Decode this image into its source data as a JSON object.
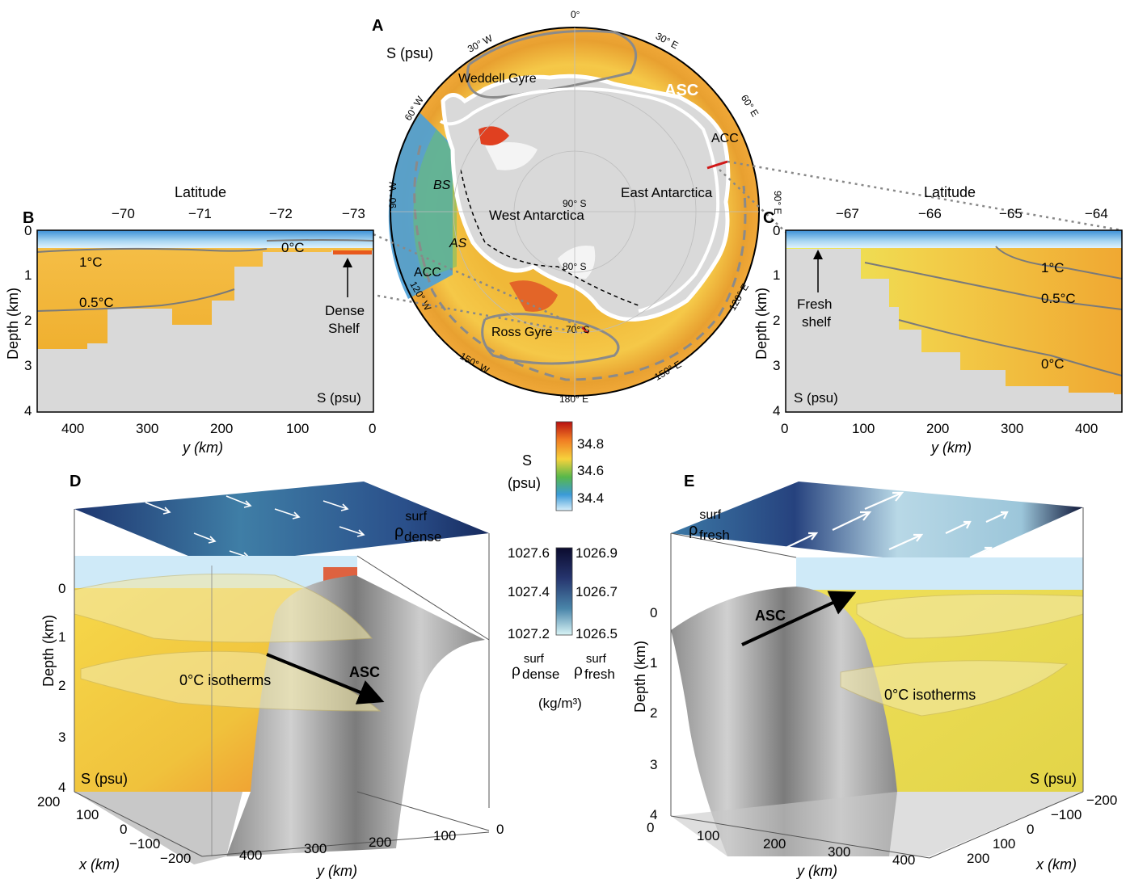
{
  "panel_labels": [
    "A",
    "B",
    "C",
    "D",
    "E"
  ],
  "panel_a": {
    "unit_label": "S (psu)",
    "longitude_labels": [
      "0°",
      "30° W",
      "30° E",
      "60° W",
      "60° E",
      "90° W",
      "90° E",
      "120° W",
      "120° E",
      "150° W",
      "150° E",
      "180° E"
    ],
    "latitude_labels": [
      "90° S",
      "80° S",
      "70° S"
    ],
    "region_labels": [
      "Weddell Gyre",
      "ASC",
      "ACC",
      "BS",
      "AS",
      "West Antarctica",
      "East Antarctica",
      "ACC",
      "Ross Gyre"
    ]
  },
  "panel_b": {
    "top_axis_title": "Latitude",
    "top_ticks": [
      "−70",
      "−71",
      "−72",
      "−73"
    ],
    "y_axis_title": "Depth (km)",
    "y_ticks": [
      "0",
      "1",
      "2",
      "3",
      "4"
    ],
    "x_axis_title": "y (km)",
    "x_ticks": [
      "400",
      "300",
      "200",
      "100",
      "0"
    ],
    "contour_labels": [
      "1°C",
      "0.5°C",
      "0°C"
    ],
    "annotation": [
      "Dense",
      "Shelf"
    ],
    "unit_label": "S (psu)"
  },
  "panel_c": {
    "top_axis_title": "Latitude",
    "top_ticks": [
      "−67",
      "−66",
      "−65",
      "−64"
    ],
    "y_axis_title": "Depth (km)",
    "y_ticks": [
      "0",
      "1",
      "2",
      "3",
      "4"
    ],
    "x_axis_title": "y (km)",
    "x_ticks": [
      "0",
      "100",
      "200",
      "300",
      "400"
    ],
    "contour_labels": [
      "1°C",
      "0.5°C",
      "0°C"
    ],
    "annotation": [
      "Fresh",
      "shelf"
    ],
    "unit_label": "S (psu)"
  },
  "salinity_colorbar": {
    "title": [
      "S",
      "(psu)"
    ],
    "ticks": [
      "34.8",
      "34.6",
      "34.4"
    ],
    "colors": [
      "#c01818",
      "#f07a22",
      "#f6d23c",
      "#58b84a",
      "#3a9ad8",
      "#cfe8f8"
    ]
  },
  "density_colorbar": {
    "left_ticks": [
      "1027.6",
      "1027.4",
      "1027.2"
    ],
    "right_ticks": [
      "1026.9",
      "1026.7",
      "1026.5"
    ],
    "left_label": {
      "main": "ρ",
      "sup": "surf",
      "sub": "dense"
    },
    "right_label": {
      "main": "ρ",
      "sup": "surf",
      "sub": "fresh"
    },
    "unit": "(kg/m³)"
  },
  "panel_d": {
    "surface_label": {
      "main": "ρ",
      "sup": "surf",
      "sub": "dense"
    },
    "y_axis_title": "Depth (km)",
    "depth_ticks": [
      "0",
      "1",
      "2",
      "3",
      "4"
    ],
    "x_axis_title": "x (km)",
    "x_ticks": [
      "200",
      "100",
      "0",
      "−100",
      "−200"
    ],
    "y2_axis_title": "y (km)",
    "y2_ticks": [
      "400",
      "300",
      "200",
      "100",
      "0"
    ],
    "annotations": [
      "ASC",
      "0°C isotherms",
      "S (psu)"
    ]
  },
  "panel_e": {
    "surface_label": {
      "main": "ρ",
      "sup": "surf",
      "sub": "fresh"
    },
    "y_axis_title": "Depth (km)",
    "depth_ticks": [
      "0",
      "1",
      "2",
      "3",
      "4"
    ],
    "x_axis_title": "x (km)",
    "x_ticks": [
      "−200",
      "−100",
      "0",
      "100",
      "200"
    ],
    "y2_axis_title": "y (km)",
    "y2_ticks": [
      "0",
      "100",
      "200",
      "300",
      "400"
    ],
    "annotations": [
      "ASC",
      "0°C isotherms",
      "S (psu)"
    ]
  }
}
